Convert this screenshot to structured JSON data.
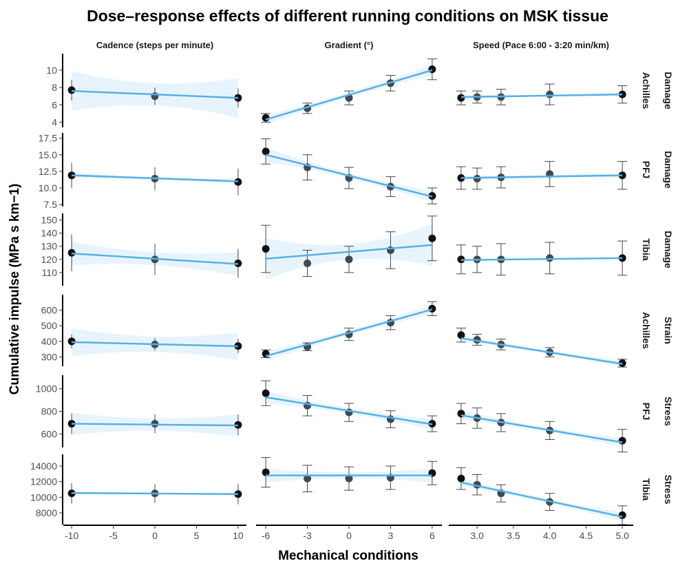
{
  "chart_data": {
    "type": "line",
    "title": "Dose–response effects of different running conditions on MSK tissue",
    "xlabel": "Mechanical conditions",
    "ylabel": "Cumulative impulse (MPa s km−1)",
    "colors": {
      "line": "#56b1e2",
      "band": "#e8f4fd",
      "point": "#111111",
      "errorbar": "#444444"
    },
    "columns": [
      {
        "label": "Cadence (steps per minute)",
        "x": [
          -10,
          0,
          10
        ],
        "xlim": [
          -11,
          11
        ],
        "xticks": [
          -10,
          -5,
          0,
          5,
          10
        ],
        "xtick_labels": [
          "-10",
          "-5",
          "0",
          "5",
          "10"
        ]
      },
      {
        "label": "Gradient (°)",
        "x": [
          -6,
          -3,
          0,
          3,
          6
        ],
        "xlim": [
          -6.7,
          6.7
        ],
        "xticks": [
          -6,
          -3,
          0,
          3,
          6
        ],
        "xtick_labels": [
          "-6",
          "-3",
          "0",
          "3",
          "6"
        ]
      },
      {
        "label": "Speed (Pace 6:00 - 3:20 min/km)",
        "x": [
          2.78,
          3.0,
          3.33,
          4.0,
          5.0
        ],
        "xlim": [
          2.61,
          5.15
        ],
        "xticks": [
          3.0,
          3.5,
          4.0,
          4.5,
          5.0
        ],
        "xtick_labels": [
          "3.0",
          "3.5",
          "4.0",
          "4.5",
          "5.0"
        ]
      }
    ],
    "rows": [
      {
        "tissue": "Achilles",
        "measure": "Damage",
        "ylim": [
          3.4,
          11.9
        ],
        "yticks": [
          4,
          6,
          8,
          10
        ],
        "ytick_labels": [
          "4",
          "6",
          "8",
          "10"
        ],
        "panels": [
          {
            "y": [
              7.7,
              7.0,
              6.8
            ],
            "err": [
              1.2,
              1.0,
              1.1
            ],
            "fit": [
              7.6,
              6.8
            ],
            "ci": [
              2.3,
              1.3,
              2.3
            ]
          },
          {
            "y": [
              4.5,
              5.6,
              6.8,
              8.5,
              10.1
            ],
            "err": [
              0.5,
              0.6,
              0.8,
              0.9,
              1.2
            ],
            "fit": [
              4.3,
              10.0
            ],
            "ci": [
              0.5,
              0.3,
              0.6
            ]
          },
          {
            "y": [
              6.8,
              6.9,
              6.9,
              7.2,
              7.2
            ],
            "err": [
              0.8,
              0.7,
              0.9,
              1.2,
              1.0
            ],
            "fit": [
              6.9,
              7.2
            ],
            "ci": [
              0.2,
              0.1,
              0.2
            ]
          }
        ]
      },
      {
        "tissue": "PFJ",
        "measure": "Damage",
        "ylim": [
          7.2,
          18.3
        ],
        "yticks": [
          7.5,
          10,
          12.5,
          15,
          17.5
        ],
        "ytick_labels": [
          "7.5",
          "10.0",
          "12.5",
          "15.0",
          "17.5"
        ],
        "panels": [
          {
            "y": [
              11.9,
              11.4,
              10.9
            ],
            "err": [
              1.9,
              1.7,
              2.0
            ],
            "fit": [
              11.9,
              11.0
            ],
            "ci": [
              0.4,
              0.2,
              0.4
            ]
          },
          {
            "y": [
              15.5,
              13.1,
              11.5,
              10.2,
              8.8
            ],
            "err": [
              1.9,
              1.9,
              1.6,
              1.5,
              1.2
            ],
            "fit": [
              15.0,
              8.7
            ],
            "ci": [
              1.1,
              0.4,
              0.8
            ]
          },
          {
            "y": [
              11.5,
              11.4,
              11.6,
              12.1,
              11.9
            ],
            "err": [
              1.7,
              1.6,
              1.6,
              1.9,
              2.1
            ],
            "fit": [
              11.5,
              11.9
            ],
            "ci": [
              0.3,
              0.2,
              0.3
            ]
          }
        ]
      },
      {
        "tissue": "Tibia",
        "measure": "Damage",
        "ylim": [
          100,
          155
        ],
        "yticks": [
          110,
          120,
          130,
          140,
          150
        ],
        "ytick_labels": [
          "110",
          "120",
          "130",
          "140",
          "150"
        ],
        "panels": [
          {
            "y": [
              125,
              120,
              117
            ],
            "err": [
              14,
              12,
              11
            ],
            "fit": [
              124.5,
              116.5
            ],
            "ci": [
              9,
              5,
              9
            ]
          },
          {
            "y": [
              128,
              117,
              120,
              127,
              136
            ],
            "err": [
              18,
              10,
              10,
              14,
              17
            ],
            "fit": [
              120.5,
              131
            ],
            "ci": [
              16,
              6,
              16
            ]
          },
          {
            "y": [
              120,
              120,
              120,
              121,
              121
            ],
            "err": [
              11,
              10,
              12,
              12,
              13
            ],
            "fit": [
              119.5,
              121
            ],
            "ci": [
              0.6,
              0.4,
              0.6
            ]
          }
        ]
      },
      {
        "tissue": "Achilles",
        "measure": "Strain",
        "ylim": [
          240,
          700
        ],
        "yticks": [
          300,
          400,
          500,
          600
        ],
        "ytick_labels": [
          "300",
          "400",
          "500",
          "600"
        ],
        "panels": [
          {
            "y": [
              400,
              380,
              370
            ],
            "err": [
              45,
              40,
              45
            ],
            "fit": [
              395,
              368
            ],
            "ci": [
              90,
              50,
              90
            ]
          },
          {
            "y": [
              320,
              365,
              445,
              520,
              610
            ],
            "err": [
              25,
              25,
              40,
              45,
              45
            ],
            "fit": [
              305,
              605
            ],
            "ci": [
              30,
              15,
              30
            ]
          },
          {
            "y": [
              440,
              410,
              380,
              330,
              260
            ],
            "err": [
              45,
              35,
              35,
              30,
              25
            ],
            "fit": [
              420,
              255
            ],
            "ci": [
              20,
              10,
              20
            ]
          }
        ]
      },
      {
        "tissue": "PFJ",
        "measure": "Stress",
        "ylim": [
          480,
          1120
        ],
        "yticks": [
          600,
          800,
          1000
        ],
        "ytick_labels": [
          "600",
          "800",
          "1000"
        ],
        "panels": [
          {
            "y": [
              690,
              690,
              680
            ],
            "err": [
              90,
              85,
              90
            ],
            "fit": [
              690,
              675
            ],
            "ci": [
              100,
              55,
              100
            ]
          },
          {
            "y": [
              960,
              850,
              790,
              730,
              690
            ],
            "err": [
              110,
              90,
              80,
              75,
              70
            ],
            "fit": [
              925,
              685
            ],
            "ci": [
              55,
              25,
              45
            ]
          },
          {
            "y": [
              780,
              740,
              700,
              630,
              540
            ],
            "err": [
              90,
              90,
              80,
              80,
              100
            ],
            "fit": [
              765,
              525
            ],
            "ci": [
              40,
              20,
              40
            ]
          }
        ]
      },
      {
        "tissue": "Tibia",
        "measure": "Stress",
        "ylim": [
          6500,
          15500
        ],
        "yticks": [
          8000,
          10000,
          12000,
          14000
        ],
        "ytick_labels": [
          "8000",
          "10000",
          "12000",
          "14000"
        ],
        "panels": [
          {
            "y": [
              10500,
              10500,
              10400
            ],
            "err": [
              1300,
              1200,
              1300
            ],
            "fit": [
              10550,
              10400
            ],
            "ci": [
              200,
              100,
              200
            ]
          },
          {
            "y": [
              13200,
              12400,
              12400,
              12500,
              13100
            ],
            "err": [
              1900,
              1700,
              1500,
              1500,
              1500
            ],
            "fit": [
              12800,
              12800
            ],
            "ci": [
              900,
              400,
              900
            ]
          },
          {
            "y": [
              12400,
              11600,
              10500,
              9400,
              7700
            ],
            "err": [
              1400,
              1300,
              1100,
              1100,
              1200
            ],
            "fit": [
              11900,
              7500
            ],
            "ci": [
              500,
              250,
              600
            ]
          }
        ]
      }
    ]
  }
}
